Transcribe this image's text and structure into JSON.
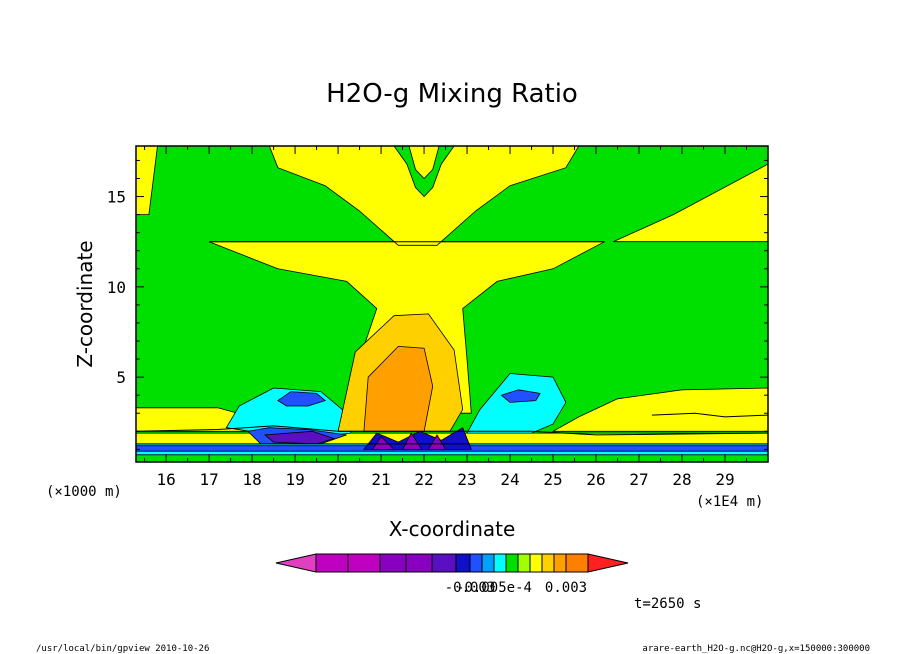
{
  "chart_data": {
    "type": "heatmap",
    "title": "H2O-g Mixing Ratio",
    "xlabel": "X-coordinate",
    "ylabel": "Z-coordinate",
    "x_unit_left": "(×1000 m)",
    "x_unit_right": "(×1E4 m)",
    "xlim": [
      15.3,
      30.0
    ],
    "ylim": [
      0.3,
      17.8
    ],
    "xticks": [
      16,
      17,
      18,
      19,
      20,
      21,
      22,
      23,
      24,
      25,
      26,
      27,
      28,
      29
    ],
    "yticks": [
      5,
      10,
      15
    ],
    "grid": false,
    "colorbar": {
      "colors": [
        "#c000c0",
        "#c000c0",
        "#8a00c0",
        "#8a00c0",
        "#5a10c0",
        "#1010c8",
        "#2050ff",
        "#00a0ff",
        "#00ffff",
        "#00e000",
        "#a0ff00",
        "#ffff00",
        "#ffd000",
        "#ffa000",
        "#ff8000"
      ],
      "under_color": "#e040c0",
      "over_color": "#ff2020",
      "tick_labels": [
        "-0.003",
        "-0.005e-4",
        "0.003"
      ]
    },
    "regions": [
      {
        "color": "#00e000",
        "poly": [
          [
            15.3,
            0.3
          ],
          [
            30,
            0.3
          ],
          [
            30,
            17.8
          ],
          [
            15.3,
            17.8
          ]
        ]
      },
      {
        "color": "#ffff00",
        "poly": [
          [
            17.0,
            12.5
          ],
          [
            26.2,
            12.5
          ],
          [
            25.0,
            11.0
          ],
          [
            23.7,
            10.3
          ],
          [
            22.9,
            8.8
          ],
          [
            23.0,
            6.0
          ],
          [
            23.1,
            3.0
          ],
          [
            20.2,
            3.0
          ],
          [
            20.5,
            6.0
          ],
          [
            20.9,
            8.8
          ],
          [
            20.2,
            10.3
          ],
          [
            18.6,
            11.0
          ]
        ]
      },
      {
        "color": "#ffff00",
        "poly": [
          [
            18.4,
            17.8
          ],
          [
            25.6,
            17.8
          ],
          [
            25.3,
            16.6
          ],
          [
            24.0,
            15.6
          ],
          [
            23.2,
            14.2
          ],
          [
            22.3,
            12.3
          ],
          [
            21.4,
            12.3
          ],
          [
            20.5,
            14.2
          ],
          [
            19.7,
            15.6
          ],
          [
            18.6,
            16.6
          ]
        ]
      },
      {
        "color": "#00e000",
        "poly": [
          [
            21.3,
            17.8
          ],
          [
            21.6,
            16.8
          ],
          [
            21.8,
            15.5
          ],
          [
            22.0,
            15.0
          ],
          [
            22.2,
            15.5
          ],
          [
            22.4,
            16.8
          ],
          [
            22.7,
            17.8
          ]
        ]
      },
      {
        "color": "#ffff00",
        "poly": [
          [
            21.65,
            17.8
          ],
          [
            21.8,
            16.5
          ],
          [
            22.0,
            16.0
          ],
          [
            22.2,
            16.5
          ],
          [
            22.35,
            17.8
          ]
        ]
      },
      {
        "color": "#ffff00",
        "poly": [
          [
            15.3,
            14.0
          ],
          [
            15.6,
            14.0
          ],
          [
            15.8,
            17.8
          ],
          [
            15.3,
            17.8
          ]
        ]
      },
      {
        "color": "#ffff00",
        "poly": [
          [
            26.4,
            12.5
          ],
          [
            30,
            12.5
          ],
          [
            30,
            16.8
          ],
          [
            27.8,
            14.0
          ]
        ]
      },
      {
        "color": "#ffff00",
        "poly": [
          [
            15.3,
            3.3
          ],
          [
            17.2,
            3.3
          ],
          [
            18.3,
            2.6
          ],
          [
            18.5,
            2.0
          ],
          [
            15.3,
            2.0
          ]
        ]
      },
      {
        "color": "#ffff00",
        "poly": [
          [
            30,
            4.4
          ],
          [
            28.0,
            4.3
          ],
          [
            26.5,
            3.8
          ],
          [
            25.6,
            2.8
          ],
          [
            25.0,
            2.0
          ],
          [
            30,
            2.0
          ]
        ]
      },
      {
        "color": "#ffff00",
        "poly": [
          [
            15.3,
            1.9
          ],
          [
            30,
            1.9
          ],
          [
            30,
            0.9
          ],
          [
            15.3,
            0.9
          ]
        ]
      },
      {
        "color": "#00ffff",
        "poly": [
          [
            17.4,
            2.2
          ],
          [
            17.7,
            3.4
          ],
          [
            18.5,
            4.4
          ],
          [
            19.6,
            4.2
          ],
          [
            20.2,
            3.0
          ],
          [
            20.3,
            1.9
          ],
          [
            19.0,
            1.6
          ]
        ]
      },
      {
        "color": "#00ffff",
        "poly": [
          [
            23.0,
            1.9
          ],
          [
            23.3,
            3.2
          ],
          [
            24.0,
            5.2
          ],
          [
            25.0,
            5.0
          ],
          [
            25.3,
            3.6
          ],
          [
            25.0,
            2.4
          ],
          [
            24.5,
            1.9
          ]
        ]
      },
      {
        "color": "#00ffff",
        "poly": [
          [
            15.3,
            1.3
          ],
          [
            30,
            1.3
          ],
          [
            30,
            0.7
          ],
          [
            15.3,
            0.7
          ]
        ]
      },
      {
        "color": "#2050ff",
        "poly": [
          [
            18.6,
            3.7
          ],
          [
            18.9,
            4.2
          ],
          [
            19.5,
            4.1
          ],
          [
            19.7,
            3.7
          ],
          [
            19.3,
            3.4
          ],
          [
            18.8,
            3.4
          ]
        ]
      },
      {
        "color": "#2050ff",
        "poly": [
          [
            23.8,
            4.0
          ],
          [
            24.2,
            4.3
          ],
          [
            24.7,
            4.1
          ],
          [
            24.6,
            3.7
          ],
          [
            24.0,
            3.6
          ]
        ]
      },
      {
        "color": "#2050ff",
        "poly": [
          [
            17.9,
            2.0
          ],
          [
            18.4,
            2.2
          ],
          [
            19.3,
            2.1
          ],
          [
            20.2,
            1.8
          ],
          [
            19.6,
            1.3
          ],
          [
            18.2,
            1.3
          ]
        ]
      },
      {
        "color": "#2050ff",
        "poly": [
          [
            15.3,
            1.2
          ],
          [
            30,
            1.2
          ],
          [
            30,
            0.9
          ],
          [
            15.3,
            0.9
          ]
        ]
      },
      {
        "color": "#5a10c0",
        "poly": [
          [
            18.3,
            1.8
          ],
          [
            19.4,
            2.0
          ],
          [
            19.9,
            1.6
          ],
          [
            19.5,
            1.3
          ],
          [
            18.5,
            1.4
          ]
        ]
      },
      {
        "color": "#ffd000",
        "poly": [
          [
            20.0,
            2.0
          ],
          [
            20.4,
            6.4
          ],
          [
            21.3,
            8.4
          ],
          [
            22.1,
            8.5
          ],
          [
            22.7,
            6.5
          ],
          [
            22.9,
            3.2
          ],
          [
            22.6,
            2.0
          ]
        ]
      },
      {
        "color": "#ffa000",
        "poly": [
          [
            20.6,
            2.0
          ],
          [
            20.7,
            5.0
          ],
          [
            21.4,
            6.7
          ],
          [
            22.0,
            6.6
          ],
          [
            22.2,
            4.5
          ],
          [
            22.0,
            2.0
          ]
        ]
      },
      {
        "color": "#1010c8",
        "poly": [
          [
            20.6,
            1.0
          ],
          [
            20.9,
            1.9
          ],
          [
            21.4,
            1.4
          ],
          [
            21.9,
            2.0
          ],
          [
            22.4,
            1.5
          ],
          [
            22.9,
            2.2
          ],
          [
            23.1,
            1.0
          ]
        ]
      },
      {
        "color": "#8a00c0",
        "poly": [
          [
            20.8,
            1.0
          ],
          [
            21.0,
            1.7
          ],
          [
            21.3,
            1.0
          ]
        ]
      },
      {
        "color": "#8a00c0",
        "poly": [
          [
            21.5,
            1.0
          ],
          [
            21.7,
            1.9
          ],
          [
            21.95,
            1.0
          ]
        ]
      },
      {
        "color": "#8a00c0",
        "poly": [
          [
            22.1,
            1.0
          ],
          [
            22.3,
            1.8
          ],
          [
            22.5,
            1.0
          ]
        ]
      }
    ],
    "contour_lines": [
      [
        [
          17.0,
          12.5
        ],
        [
          26.2,
          12.5
        ]
      ],
      [
        [
          15.3,
          2.0
        ],
        [
          17.2,
          2.1
        ],
        [
          18.5,
          2.3
        ],
        [
          20.0,
          2.0
        ],
        [
          21.0,
          2.0
        ],
        [
          23.0,
          2.0
        ],
        [
          24.5,
          2.0
        ],
        [
          26.0,
          1.8
        ],
        [
          30,
          1.9
        ]
      ],
      [
        [
          15.3,
          1.3
        ],
        [
          30,
          1.3
        ]
      ],
      [
        [
          27.3,
          2.9
        ],
        [
          28.3,
          3.0
        ],
        [
          29.0,
          2.8
        ],
        [
          30,
          2.9
        ]
      ]
    ],
    "annotation": "t=2650 s",
    "footer_left": "/usr/local/bin/gpview  2010-10-26",
    "footer_right": "arare-earth_H2O-g.nc@H2O-g,x=150000:300000"
  }
}
